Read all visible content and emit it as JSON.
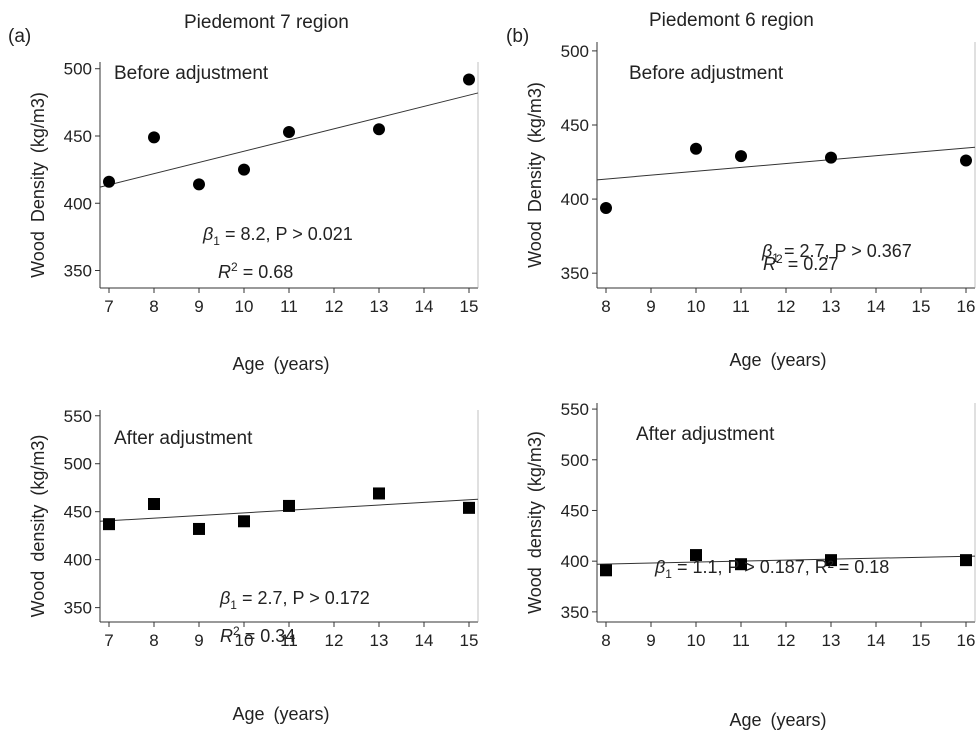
{
  "column_a": {
    "tag": "(a)",
    "title": "Piedemont 7 region"
  },
  "column_b": {
    "tag": "(b)",
    "title": "Piedemont 6 region"
  },
  "chart_data": [
    {
      "id": "a-before",
      "type": "scatter",
      "marker": "circle",
      "panel_label": "Before adjustment",
      "xlabel": "Age (years)",
      "ylabel": "Wood Density (kg/m3)",
      "xlim": [
        6.8,
        15.2
      ],
      "ylim": [
        337,
        505
      ],
      "xticks": [
        7,
        8,
        9,
        10,
        11,
        12,
        13,
        14,
        15
      ],
      "yticks": [
        350,
        400,
        450,
        500
      ],
      "x": [
        7,
        8,
        9,
        10,
        11,
        13,
        15
      ],
      "y": [
        416,
        449,
        414,
        425,
        453,
        455,
        492
      ],
      "fit": {
        "x": [
          6.8,
          15.2
        ],
        "y": [
          412,
          482
        ]
      },
      "stats_line1": {
        "pre": "β",
        "sub": "1",
        "post": " = 8.2,  P > 0.021"
      },
      "stats_line2": {
        "pre": "R",
        "sup": "2",
        "post": " = 0.68"
      }
    },
    {
      "id": "b-before",
      "type": "scatter",
      "marker": "circle",
      "panel_label": "Before adjustment",
      "xlabel": "Age (years)",
      "ylabel": "Wood Density (kg/m3)",
      "xlim": [
        7.8,
        16.2
      ],
      "ylim": [
        340,
        506
      ],
      "xticks": [
        8,
        9,
        10,
        11,
        12,
        13,
        14,
        15,
        16
      ],
      "yticks": [
        350,
        400,
        450,
        500
      ],
      "x": [
        8,
        10,
        11,
        13,
        16
      ],
      "y": [
        394,
        434,
        429,
        428,
        426
      ],
      "fit": {
        "x": [
          7.8,
          16.2
        ],
        "y": [
          413,
          435
        ]
      },
      "stats_line1": {
        "pre": "β",
        "sub": "1",
        "post": " = 2.7,  P > 0.367"
      },
      "stats_line2": {
        "pre": "R",
        "sup": "2",
        "post": " = 0.27"
      }
    },
    {
      "id": "a-after",
      "type": "scatter",
      "marker": "square",
      "panel_label": "After adjustment",
      "xlabel": "Age (years)",
      "ylabel": "Wood density (kg/m3)",
      "xlim": [
        6.8,
        15.2
      ],
      "ylim": [
        335,
        556
      ],
      "xticks": [
        7,
        8,
        9,
        10,
        11,
        12,
        13,
        14,
        15
      ],
      "yticks": [
        350,
        400,
        450,
        500,
        550
      ],
      "x": [
        7,
        8,
        9,
        10,
        11,
        13,
        15
      ],
      "y": [
        437,
        458,
        432,
        440,
        456,
        469,
        454
      ],
      "fit": {
        "x": [
          6.8,
          15.2
        ],
        "y": [
          440,
          463
        ]
      },
      "stats_line1": {
        "pre": "β",
        "sub": "1",
        "post": " = 2.7,  P > 0.172"
      },
      "stats_line2": {
        "pre": "R",
        "sup": "2",
        "post": " = 0.34"
      }
    },
    {
      "id": "b-after",
      "type": "scatter",
      "marker": "square",
      "panel_label": "After adjustment",
      "xlabel": "Age (years)",
      "ylabel": "Wood density (kg/m3)",
      "xlim": [
        7.8,
        16.2
      ],
      "ylim": [
        340,
        556
      ],
      "xticks": [
        8,
        9,
        10,
        11,
        12,
        13,
        14,
        15,
        16
      ],
      "yticks": [
        350,
        400,
        450,
        500,
        550
      ],
      "x": [
        8,
        10,
        11,
        13,
        16
      ],
      "y": [
        391,
        406,
        397,
        401,
        401
      ],
      "fit": {
        "x": [
          7.8,
          16.2
        ],
        "y": [
          397,
          405
        ]
      },
      "stats_line1": {
        "pre": "β",
        "sub": "1",
        "post": " = 1.1,  P > 0.187,  R² = 0.18"
      },
      "stats_line2": null
    }
  ]
}
